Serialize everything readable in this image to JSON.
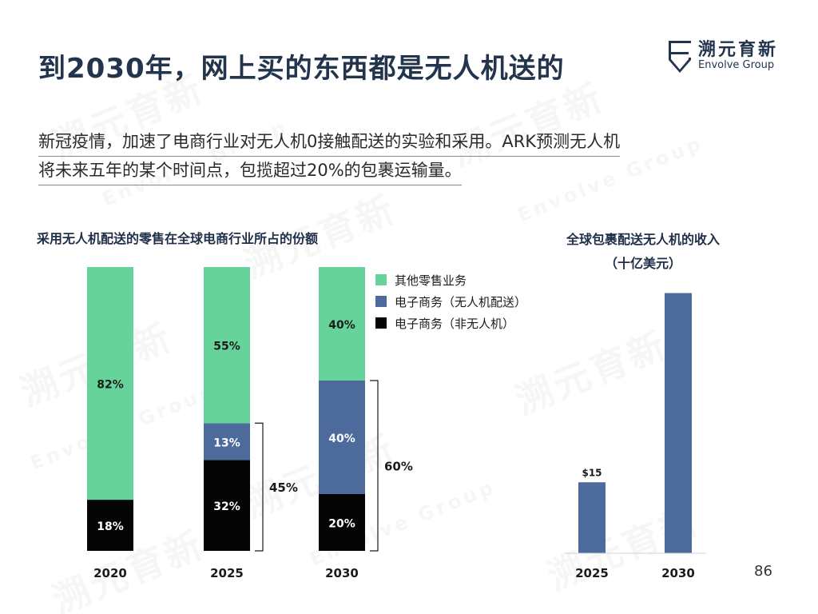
{
  "slide": {
    "title": "到2030年，网上买的东西都是无人机送的",
    "lead_line1": "新冠疫情，加速了电商行业对无人机0接触配送的实验和采用。ARK预测无人机",
    "lead_line2": "将未来五年的某个时间点，包揽超过20%的包裹运输量。",
    "page_number": "86"
  },
  "logo": {
    "cn": "溯元育新",
    "en": "Envolve Group",
    "icon": "shield-e-logo-icon"
  },
  "watermark": {
    "cn": "溯元育新",
    "en": "Envolve Group"
  },
  "colors": {
    "navy": "#23344d",
    "green": "#66d49a",
    "blue": "#4c6a9b",
    "black": "#050505",
    "bar_blue": "#4c6a9b"
  },
  "chart_data": [
    {
      "type": "bar",
      "stacked": true,
      "title": "采用无人机配送的零售在全球电商行业所占的份额",
      "categories": [
        "2020",
        "2025",
        "2030"
      ],
      "series": [
        {
          "name": "电子商务（非无人机）",
          "values": [
            18,
            32,
            20
          ],
          "labels": [
            "18%",
            "32%",
            "20%"
          ],
          "color": "#050505"
        },
        {
          "name": "电子商务（无人机配送）",
          "values": [
            0,
            13,
            40
          ],
          "labels": [
            "",
            "13%",
            "40%"
          ],
          "color": "#4c6a9b"
        },
        {
          "name": "其他零售业务",
          "values": [
            82,
            55,
            40
          ],
          "labels": [
            "82%",
            "55%",
            "40%"
          ],
          "color": "#66d49a"
        }
      ],
      "legend": [
        "其他零售业务",
        "电子商务（无人机配送）",
        "电子商务（非无人机）"
      ],
      "legend_position": "top-right",
      "brackets": [
        {
          "category": "2025",
          "label": "45%"
        },
        {
          "category": "2030",
          "label": "60%"
        }
      ],
      "ylim": [
        0,
        100
      ]
    },
    {
      "type": "bar",
      "title": "全球包裹配送无人机的收入",
      "subtitle": "（十亿美元）",
      "categories": [
        "2025",
        "2030"
      ],
      "values": [
        15,
        55
      ],
      "labels": [
        "$15",
        ""
      ],
      "ylim": [
        0,
        60
      ]
    }
  ]
}
